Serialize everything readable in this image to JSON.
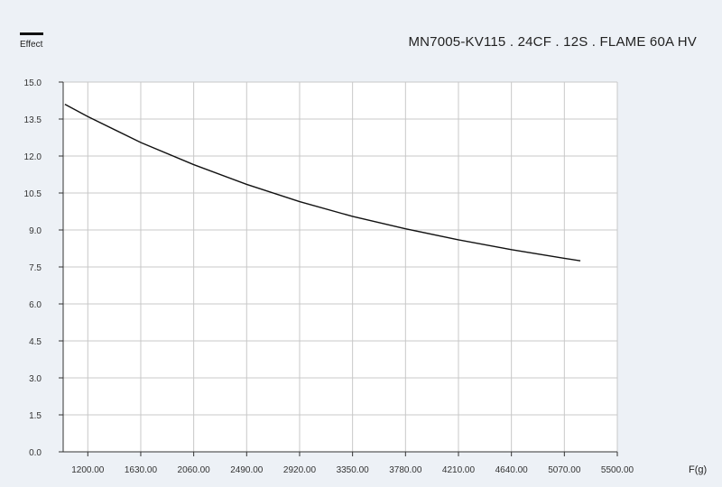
{
  "chart_data": {
    "type": "line",
    "title": "MN7005-KV115 . 24CF . 12S . FLAME 60A HV",
    "legend": {
      "label": "Effect",
      "color": "#111111",
      "placement": "top-left"
    },
    "xlabel": "F(g)",
    "ylabel": "",
    "xlim": [
      1000,
      5500
    ],
    "ylim": [
      0,
      15
    ],
    "xticks": [
      1200,
      1630,
      2060,
      2490,
      2920,
      3350,
      3780,
      4210,
      4640,
      5070,
      5500
    ],
    "xtick_labels": [
      "1200.00",
      "1630.00",
      "2060.00",
      "2490.00",
      "2920.00",
      "3350.00",
      "3780.00",
      "4210.00",
      "4640.00",
      "5070.00",
      "5500.00"
    ],
    "yticks": [
      0,
      1.5,
      3,
      4.5,
      6,
      7.5,
      9,
      10.5,
      12,
      13.5,
      15
    ],
    "ytick_labels": [
      "0.0",
      "1.5",
      "3.0",
      "4.5",
      "6.0",
      "7.5",
      "9.0",
      "10.5",
      "12.0",
      "13.5",
      "15.0"
    ],
    "grid": true,
    "series": [
      {
        "name": "Effect",
        "x": [
          1014,
          1200,
          1630,
          2060,
          2490,
          2920,
          3350,
          3780,
          4210,
          4640,
          5070,
          5200
        ],
        "y": [
          14.1,
          13.6,
          12.55,
          11.65,
          10.85,
          10.15,
          9.55,
          9.05,
          8.6,
          8.2,
          7.85,
          7.75
        ]
      }
    ]
  }
}
